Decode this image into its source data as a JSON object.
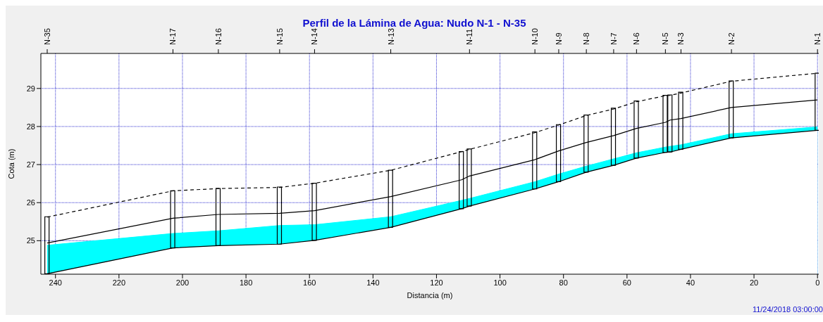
{
  "chart_data": {
    "type": "line",
    "title": "Perfil de la Lámina de Agua:  Nudo N-1 - N-35",
    "xlabel": "Distancia (m)",
    "ylabel": "Cota (m)",
    "annotations": [
      "11/24/2018 03:00:00",
      {
        "text": "N-35",
        "x": 242.6
      },
      {
        "text": "N-17",
        "x": 203
      },
      {
        "text": "N-16",
        "x": 188.7
      },
      {
        "text": "N-15",
        "x": 169.4
      },
      {
        "text": "N-14",
        "x": 158.4
      },
      {
        "text": "N-13",
        "x": 134.4
      },
      {
        "text": "N-11",
        "x": 109.6
      },
      {
        "text": "N-10",
        "x": 89
      },
      {
        "text": "N-9",
        "x": 81.5
      },
      {
        "text": "N-8",
        "x": 72.8
      },
      {
        "text": "N-7",
        "x": 64.2
      },
      {
        "text": "N-6",
        "x": 57
      },
      {
        "text": "N-5",
        "x": 47.9
      },
      {
        "text": "N-3",
        "x": 43
      },
      {
        "text": "N-2",
        "x": 27.1
      },
      {
        "text": "N-1",
        "x": 0
      }
    ],
    "x": [
      242.6,
      203,
      188.7,
      169.4,
      158.4,
      134.4,
      112.1,
      109.6,
      89,
      81.5,
      72.8,
      64.2,
      57,
      47.9,
      46.4,
      43,
      27.1,
      0
    ],
    "series": [
      {
        "type": "area",
        "color": "#00ffff",
        "values": [
          24.88,
          25.19,
          25.26,
          25.4,
          25.42,
          25.63,
          26.06,
          26.11,
          26.55,
          26.75,
          26.96,
          27.15,
          27.31,
          27.46,
          27.48,
          27.52,
          27.81,
          27.99
        ]
      },
      {
        "type": "area",
        "color": "#000000",
        "values": [
          24.13,
          24.81,
          24.87,
          24.91,
          25.01,
          25.35,
          25.84,
          25.91,
          26.36,
          26.55,
          26.8,
          26.98,
          27.17,
          27.32,
          27.33,
          27.4,
          27.7,
          27.9
        ]
      },
      {
        "color": "#000000",
        "values": [
          24.94,
          25.59,
          25.69,
          25.72,
          25.79,
          26.16,
          26.6,
          26.7,
          27.13,
          27.36,
          27.58,
          27.76,
          27.95,
          28.11,
          28.17,
          28.21,
          28.5,
          28.7
        ]
      },
      {
        "color": "#000000",
        "line_style": "dashed",
        "values": [
          25.62,
          26.31,
          26.37,
          26.4,
          26.51,
          26.85,
          27.34,
          27.4,
          27.84,
          28.04,
          28.29,
          28.46,
          28.65,
          28.81,
          28.82,
          28.88,
          29.19,
          29.4
        ]
      },
      {
        "type": "bar",
        "color": "#000000",
        "values": [
          1.5,
          1.5,
          1.5,
          1.5,
          1.5,
          1.5,
          1.5,
          1.5,
          1.5,
          1.5,
          1.5,
          1.5,
          1.5,
          1.5,
          1.5,
          1.5,
          1.5,
          1.5
        ],
        "base": [
          24.13,
          24.81,
          24.87,
          24.91,
          25.01,
          25.35,
          25.84,
          25.91,
          26.36,
          26.55,
          26.8,
          26.98,
          27.17,
          27.32,
          27.33,
          27.4,
          27.7,
          27.9
        ]
      }
    ],
    "xlim": [
      244.6,
      -0.4
    ],
    "xticks": [
      240,
      220,
      200,
      180,
      160,
      140,
      120,
      100,
      80,
      60,
      40,
      20,
      0
    ],
    "ylim": [
      24.12,
      29.92
    ],
    "yticks": [
      25,
      26,
      27,
      28,
      29
    ],
    "grid": true
  }
}
